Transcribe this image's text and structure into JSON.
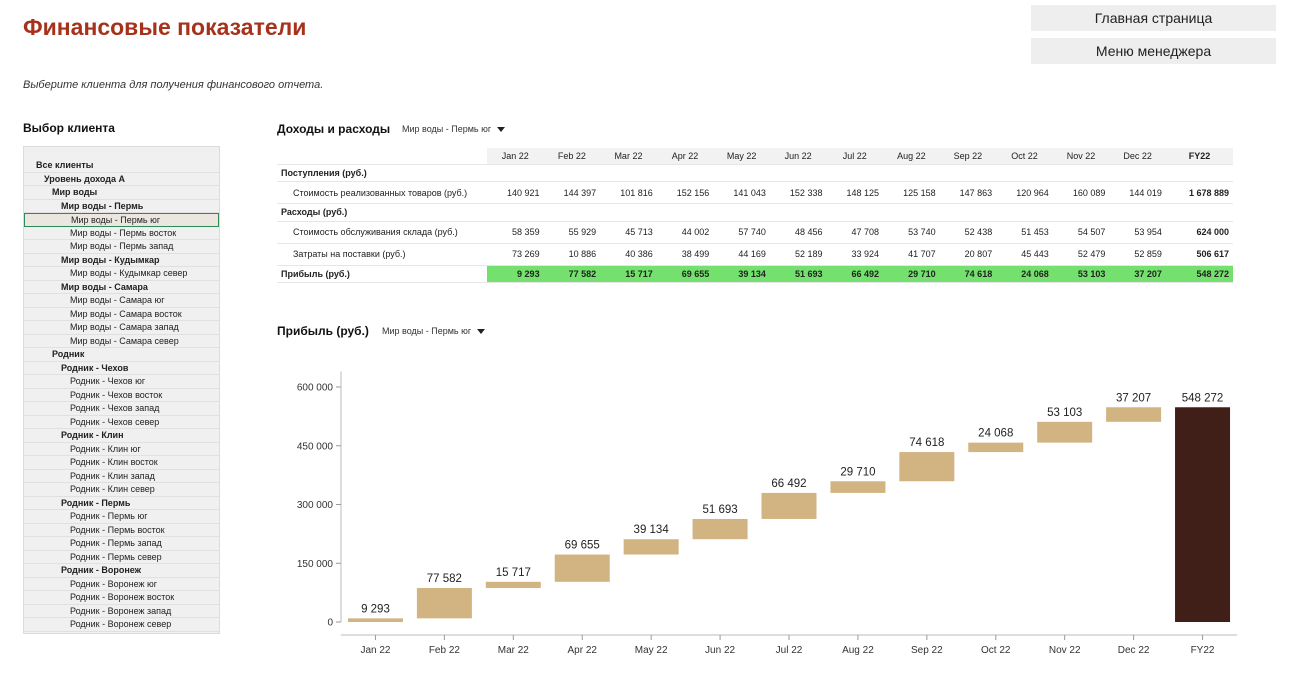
{
  "header": {
    "title": "Финансовые показатели",
    "home_button": "Главная страница",
    "manager_button": "Меню менеджера",
    "subtitle": "Выберите клиента для получения финансового отчета."
  },
  "client_panel": {
    "heading": "Выбор клиента",
    "items": [
      {
        "label": "Все клиенты",
        "level": 0,
        "bold": true
      },
      {
        "label": "Уровень дохода А",
        "level": 1,
        "bold": true
      },
      {
        "label": "Мир воды",
        "level": 2,
        "bold": true
      },
      {
        "label": "Мир воды - Пермь",
        "level": 3,
        "bold": true
      },
      {
        "label": "Мир воды - Пермь юг",
        "level": 4,
        "bold": false,
        "selected": true
      },
      {
        "label": "Мир воды - Пермь восток",
        "level": 4,
        "bold": false
      },
      {
        "label": "Мир воды - Пермь запад",
        "level": 4,
        "bold": false
      },
      {
        "label": "Мир воды - Кудымкар",
        "level": 3,
        "bold": true
      },
      {
        "label": "Мир воды - Кудымкар север",
        "level": 4,
        "bold": false
      },
      {
        "label": "Мир воды - Самара",
        "level": 3,
        "bold": true
      },
      {
        "label": "Мир воды - Самара юг",
        "level": 4,
        "bold": false
      },
      {
        "label": "Мир воды - Самара восток",
        "level": 4,
        "bold": false
      },
      {
        "label": "Мир воды - Самара запад",
        "level": 4,
        "bold": false
      },
      {
        "label": "Мир воды - Самара север",
        "level": 4,
        "bold": false
      },
      {
        "label": "Родник",
        "level": 2,
        "bold": true
      },
      {
        "label": "Родник - Чехов",
        "level": 3,
        "bold": true
      },
      {
        "label": "Родник - Чехов юг",
        "level": 4,
        "bold": false
      },
      {
        "label": "Родник - Чехов восток",
        "level": 4,
        "bold": false
      },
      {
        "label": "Родник - Чехов запад",
        "level": 4,
        "bold": false
      },
      {
        "label": "Родник - Чехов север",
        "level": 4,
        "bold": false
      },
      {
        "label": "Родник - Клин",
        "level": 3,
        "bold": true
      },
      {
        "label": "Родник - Клин юг",
        "level": 4,
        "bold": false
      },
      {
        "label": "Родник - Клин восток",
        "level": 4,
        "bold": false
      },
      {
        "label": "Родник - Клин запад",
        "level": 4,
        "bold": false
      },
      {
        "label": "Родник - Клин север",
        "level": 4,
        "bold": false
      },
      {
        "label": "Родник - Пермь",
        "level": 3,
        "bold": true
      },
      {
        "label": "Родник - Пермь юг",
        "level": 4,
        "bold": false
      },
      {
        "label": "Родник - Пермь восток",
        "level": 4,
        "bold": false
      },
      {
        "label": "Родник - Пермь запад",
        "level": 4,
        "bold": false
      },
      {
        "label": "Родник - Пермь север",
        "level": 4,
        "bold": false
      },
      {
        "label": "Родник - Воронеж",
        "level": 3,
        "bold": true
      },
      {
        "label": "Родник - Воронеж юг",
        "level": 4,
        "bold": false
      },
      {
        "label": "Родник - Воронеж восток",
        "level": 4,
        "bold": false
      },
      {
        "label": "Родник - Воронеж запад",
        "level": 4,
        "bold": false
      },
      {
        "label": "Родник - Воронеж север",
        "level": 4,
        "bold": false
      }
    ]
  },
  "income_table": {
    "title": "Доходы и расходы",
    "client_selector": "Мир воды - Пермь юг",
    "columns": [
      "",
      "Jan 22",
      "Feb 22",
      "Mar 22",
      "Apr 22",
      "May 22",
      "Jun 22",
      "Jul 22",
      "Aug 22",
      "Sep 22",
      "Oct 22",
      "Nov 22",
      "Dec 22",
      "FY22"
    ],
    "rows": [
      {
        "type": "group",
        "label": "Поступления (руб.)",
        "values": []
      },
      {
        "type": "data",
        "label": "Стоимость реализованных товаров (руб.)",
        "values": [
          "140 921",
          "144 397",
          "101 816",
          "152 156",
          "141 043",
          "152 338",
          "148 125",
          "125 158",
          "147 863",
          "120 964",
          "160 089",
          "144 019",
          "1 678 889"
        ]
      },
      {
        "type": "group",
        "label": "Расходы (руб.)",
        "values": []
      },
      {
        "type": "data",
        "label": "Стоимость обслуживания склада (руб.)",
        "values": [
          "58 359",
          "55 929",
          "45 713",
          "44 002",
          "57 740",
          "48 456",
          "47 708",
          "53 740",
          "52 438",
          "51 453",
          "54 507",
          "53 954",
          "624 000"
        ]
      },
      {
        "type": "data",
        "label": "Затраты на поставки (руб.)",
        "values": [
          "73 269",
          "10 886",
          "40 386",
          "38 499",
          "44 169",
          "52 189",
          "33 924",
          "41 707",
          "20 807",
          "45 443",
          "52 479",
          "52 859",
          "506 617"
        ]
      },
      {
        "type": "profit",
        "label": "Прибыль (руб.)",
        "values": [
          "9 293",
          "77 582",
          "15 717",
          "69 655",
          "39 134",
          "51 693",
          "66 492",
          "29 710",
          "74 618",
          "24 068",
          "53 103",
          "37 207",
          "548 272"
        ]
      }
    ],
    "profit_color": "#74e06d"
  },
  "profit_chart": {
    "title": "Прибыль (руб.)",
    "client_selector": "Мир воды - Пермь юг"
  },
  "chart_data": {
    "type": "waterfall",
    "categories": [
      "Jan 22",
      "Feb 22",
      "Mar 22",
      "Apr 22",
      "May 22",
      "Jun 22",
      "Jul 22",
      "Aug 22",
      "Sep 22",
      "Oct 22",
      "Nov 22",
      "Dec 22",
      "FY22"
    ],
    "values": [
      9293,
      77582,
      15717,
      69655,
      39134,
      51693,
      66492,
      29710,
      74618,
      24068,
      53103,
      37207,
      548272
    ],
    "labels": [
      "9 293",
      "77 582",
      "15 717",
      "69 655",
      "39 134",
      "51 693",
      "66 492",
      "29 710",
      "74 618",
      "24 068",
      "53 103",
      "37 207",
      "548 272"
    ],
    "y_ticks": [
      0,
      150000,
      300000,
      450000,
      600000
    ],
    "y_tick_labels": [
      "0",
      "150 000",
      "300 000",
      "450 000",
      "600 000"
    ],
    "ylim": [
      0,
      640000
    ],
    "increase_color": "#d2b483",
    "total_color": "#3f1f18"
  }
}
